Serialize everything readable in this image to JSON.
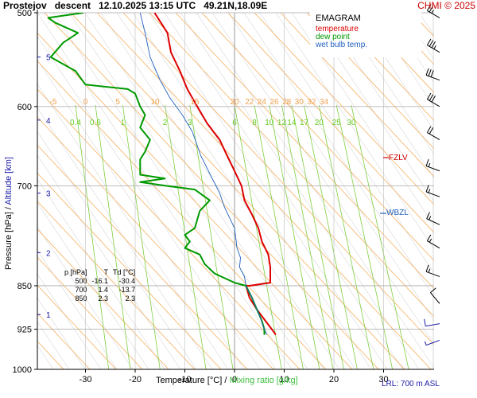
{
  "header": {
    "station": "Prostejov",
    "phase": "descent",
    "datetime": "12.10.2025 13:15 UTC",
    "coords": "49.21N,18.09E",
    "copyright": "CHMI © 2025"
  },
  "legend": {
    "title": "EMAGRAM",
    "temperature": "temperature",
    "dew_point": "dew point",
    "wet_bulb": "wet bulb temp."
  },
  "colors": {
    "temperature": "#dd0000",
    "dew_point": "#009900",
    "wet_bulb": "#1f5fbf",
    "axis_text": "#000000",
    "altitude": "#1a1aaa",
    "mixing_ratio": "#7fcf3f",
    "dry_adiabat": "#f5b060",
    "copyright": "#cc0000"
  },
  "axes": {
    "x_label_temp": "Temperature [°C]",
    "x_label_sep": "/",
    "x_label_mixing": "Mixing ratio [g/kg]",
    "y_label_pressure": "Pressure [hPa]",
    "y_label_sep": "/",
    "y_label_alt": "Altitude [km]",
    "x_ticks": [
      "-30",
      "-20",
      "-10",
      "0",
      "10",
      "20",
      "30"
    ],
    "p_ticks": [
      "500",
      "600",
      "700",
      "850",
      "925",
      "1000"
    ],
    "alt_ticks": [
      "5",
      "4",
      "3",
      "2",
      "1"
    ]
  },
  "levels": {
    "fzlv": "FZLV",
    "wbzl": "WBZL",
    "lrl": "LRL: 700 m ASL"
  },
  "table": {
    "headers": [
      "p [hPa]",
      "T",
      "Td [°C]"
    ],
    "rows": [
      [
        "500",
        "-16.1",
        "-30.4"
      ],
      [
        "700",
        "1.4",
        "-13.7"
      ],
      [
        "850",
        "2.3",
        "2.3"
      ]
    ]
  },
  "chart_data": {
    "type": "line",
    "title": "EMAGRAM",
    "xlabel": "Temperature [°C] / Mixing ratio [g/kg]",
    "ylabel": "Pressure [hPa] / Altitude [km]",
    "xlim": [
      -40,
      40
    ],
    "ylim": [
      1000,
      500
    ],
    "y_scale": "log",
    "pressure_ticks": [
      500,
      600,
      700,
      850,
      925,
      1000
    ],
    "temperature_ticks": [
      -30,
      -20,
      -10,
      0,
      10,
      20,
      30
    ],
    "altitude_ticks_km": [
      {
        "label": "5",
        "p": 545
      },
      {
        "label": "4",
        "p": 616
      },
      {
        "label": "3",
        "p": 710
      },
      {
        "label": "2",
        "p": 797
      },
      {
        "label": "1",
        "p": 899
      }
    ],
    "mixing_ratio_labels": [
      {
        "label": "0.4",
        "t": -32
      },
      {
        "label": "0.6",
        "t": -28
      },
      {
        "label": "1",
        "t": -22.5
      },
      {
        "label": "2",
        "t": -14
      },
      {
        "label": "3",
        "t": -9
      },
      {
        "label": "6",
        "t": 0
      },
      {
        "label": "8",
        "t": 4
      },
      {
        "label": "10",
        "t": 7
      },
      {
        "label": "12",
        "t": 9.5
      },
      {
        "label": "14",
        "t": 11.5
      },
      {
        "label": "17",
        "t": 14
      },
      {
        "label": "20",
        "t": 17
      },
      {
        "label": "25",
        "t": 20.5
      },
      {
        "label": "30",
        "t": 23.5
      }
    ],
    "theta_labels": [
      {
        "label": "-5",
        "t": -36.5
      },
      {
        "label": "0",
        "t": -30
      },
      {
        "label": "5",
        "t": -23.5
      },
      {
        "label": "10",
        "t": -16
      },
      {
        "label": "15",
        "t": -8
      },
      {
        "label": "20",
        "t": 0
      },
      {
        "label": "22",
        "t": 3
      },
      {
        "label": "24",
        "t": 5.5
      },
      {
        "label": "26",
        "t": 8
      },
      {
        "label": "28",
        "t": 10.5
      },
      {
        "label": "30",
        "t": 13
      },
      {
        "label": "32",
        "t": 15.5
      },
      {
        "label": "34",
        "t": 18
      }
    ],
    "series": [
      {
        "name": "temperature",
        "points": [
          [
            -16.1,
            500
          ],
          [
            -13.5,
            520
          ],
          [
            -12.8,
            540
          ],
          [
            -11.0,
            560
          ],
          [
            -9.5,
            580
          ],
          [
            -7.5,
            600
          ],
          [
            -5.5,
            620
          ],
          [
            -3.0,
            640
          ],
          [
            -1.5,
            660
          ],
          [
            0.0,
            680
          ],
          [
            1.4,
            700
          ],
          [
            2.0,
            720
          ],
          [
            3.5,
            740
          ],
          [
            4.8,
            760
          ],
          [
            5.5,
            780
          ],
          [
            6.8,
            800
          ],
          [
            7.2,
            820
          ],
          [
            7.2,
            845
          ],
          [
            3.0,
            850
          ],
          [
            2.3,
            850
          ],
          [
            3.0,
            870
          ],
          [
            4.5,
            890
          ],
          [
            6.2,
            910
          ],
          [
            7.5,
            925
          ],
          [
            8.3,
            935
          ]
        ]
      },
      {
        "name": "dew point",
        "points": [
          [
            -30.4,
            500
          ],
          [
            -37.5,
            505
          ],
          [
            -36.0,
            510
          ],
          [
            -31.5,
            520
          ],
          [
            -34.5,
            530
          ],
          [
            -37.0,
            545
          ],
          [
            -32.0,
            560
          ],
          [
            -30.0,
            575
          ],
          [
            -21.5,
            580
          ],
          [
            -20.0,
            585
          ],
          [
            -19.0,
            600
          ],
          [
            -18.0,
            610
          ],
          [
            -19.0,
            625
          ],
          [
            -17.0,
            640
          ],
          [
            -18.0,
            655
          ],
          [
            -19.0,
            665
          ],
          [
            -19.0,
            685
          ],
          [
            -14.0,
            690
          ],
          [
            -19.0,
            695
          ],
          [
            -13.7,
            700
          ],
          [
            -8.0,
            705
          ],
          [
            -5.0,
            720
          ],
          [
            -7.0,
            735
          ],
          [
            -8.0,
            760
          ],
          [
            -10.0,
            770
          ],
          [
            -9.0,
            780
          ],
          [
            -10.0,
            790
          ],
          [
            -7.0,
            800
          ],
          [
            -6.0,
            815
          ],
          [
            -4.0,
            830
          ],
          [
            0.0,
            845
          ],
          [
            2.3,
            850
          ],
          [
            3.5,
            870
          ],
          [
            4.5,
            890
          ],
          [
            5.5,
            910
          ],
          [
            6.0,
            925
          ],
          [
            6.0,
            935
          ]
        ]
      },
      {
        "name": "wet bulb temp.",
        "points": [
          [
            -19.0,
            500
          ],
          [
            -18.0,
            520
          ],
          [
            -17.0,
            545
          ],
          [
            -15.0,
            570
          ],
          [
            -13.0,
            590
          ],
          [
            -10.5,
            610
          ],
          [
            -8.5,
            630
          ],
          [
            -6.8,
            660
          ],
          [
            -4.5,
            690
          ],
          [
            -3.0,
            710
          ],
          [
            -2.0,
            730
          ],
          [
            0.0,
            760
          ],
          [
            0.5,
            790
          ],
          [
            1.2,
            805
          ],
          [
            1.0,
            820
          ],
          [
            2.0,
            835
          ],
          [
            2.3,
            850
          ],
          [
            3.5,
            870
          ],
          [
            5.0,
            900
          ],
          [
            6.0,
            925
          ],
          [
            6.5,
            935
          ]
        ]
      }
    ],
    "wind_barbs": [
      {
        "p": 505,
        "dir": 300,
        "kt": 25
      },
      {
        "p": 540,
        "dir": 300,
        "kt": 35
      },
      {
        "p": 570,
        "dir": 290,
        "kt": 30
      },
      {
        "p": 600,
        "dir": 300,
        "kt": 30
      },
      {
        "p": 640,
        "dir": 300,
        "kt": 20
      },
      {
        "p": 680,
        "dir": 290,
        "kt": 15
      },
      {
        "p": 715,
        "dir": 290,
        "kt": 15
      },
      {
        "p": 755,
        "dir": 295,
        "kt": 15
      },
      {
        "p": 790,
        "dir": 300,
        "kt": 15
      },
      {
        "p": 835,
        "dir": 290,
        "kt": 15
      },
      {
        "p": 880,
        "dir": 320,
        "kt": 10
      },
      {
        "p": 915,
        "dir": 260,
        "kt": 10
      },
      {
        "p": 945,
        "dir": 250,
        "kt": 5
      }
    ]
  }
}
